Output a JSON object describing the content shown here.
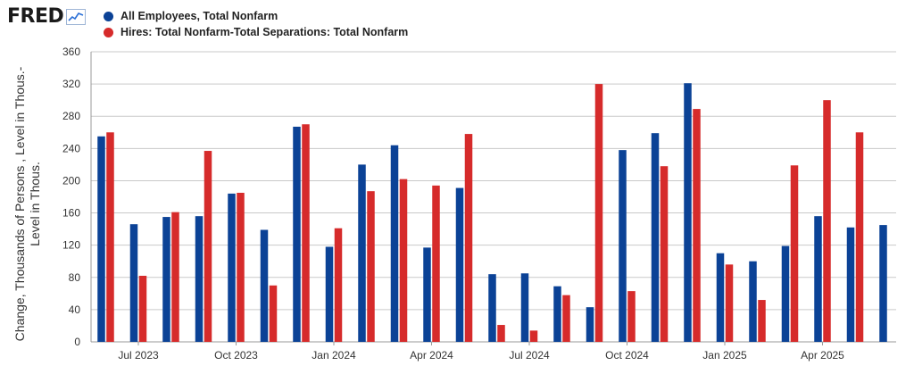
{
  "logo": {
    "text": "FRED",
    "icon": "trend-line-icon"
  },
  "colors": {
    "series1": "#0b4296",
    "series2": "#d62b2b",
    "grid": "#c9c9c9",
    "axis": "#999999"
  },
  "chart_data": {
    "type": "bar",
    "title": "",
    "ylabel_lines": [
      "Change, Thousands of Persons , Level in Thous.-",
      "Level in Thous."
    ],
    "ylim": [
      0,
      360
    ],
    "yticks": [
      0,
      40,
      80,
      120,
      160,
      200,
      240,
      280,
      320,
      360
    ],
    "grid": true,
    "legend_position": "top-left",
    "categories": [
      "2023-06",
      "2023-07",
      "2023-08",
      "2023-09",
      "2023-10",
      "2023-11",
      "2023-12",
      "2024-01",
      "2024-02",
      "2024-03",
      "2024-04",
      "2024-05",
      "2024-06",
      "2024-07",
      "2024-08",
      "2024-09",
      "2024-10",
      "2024-11",
      "2024-12",
      "2025-01",
      "2025-02",
      "2025-03",
      "2025-04",
      "2025-05",
      "2025-06"
    ],
    "xtick_labels": [
      {
        "category": "2023-07",
        "label": "Jul 2023"
      },
      {
        "category": "2023-10",
        "label": "Oct 2023"
      },
      {
        "category": "2024-01",
        "label": "Jan 2024"
      },
      {
        "category": "2024-04",
        "label": "Apr 2024"
      },
      {
        "category": "2024-07",
        "label": "Jul 2024"
      },
      {
        "category": "2024-10",
        "label": "Oct 2024"
      },
      {
        "category": "2025-01",
        "label": "Jan 2025"
      },
      {
        "category": "2025-04",
        "label": "Apr 2025"
      }
    ],
    "series": [
      {
        "name": "All Employees, Total Nonfarm",
        "color": "#0b4296",
        "values": [
          255,
          146,
          155,
          156,
          184,
          139,
          267,
          118,
          220,
          244,
          117,
          191,
          84,
          85,
          69,
          43,
          238,
          259,
          321,
          110,
          100,
          119,
          156,
          142,
          145
        ]
      },
      {
        "name": "Hires: Total Nonfarm-Total Separations: Total Nonfarm",
        "color": "#d62b2b",
        "values": [
          260,
          82,
          161,
          237,
          185,
          70,
          270,
          141,
          187,
          202,
          194,
          258,
          21,
          14,
          58,
          320,
          63,
          218,
          289,
          96,
          52,
          219,
          300,
          260,
          null
        ]
      }
    ]
  }
}
